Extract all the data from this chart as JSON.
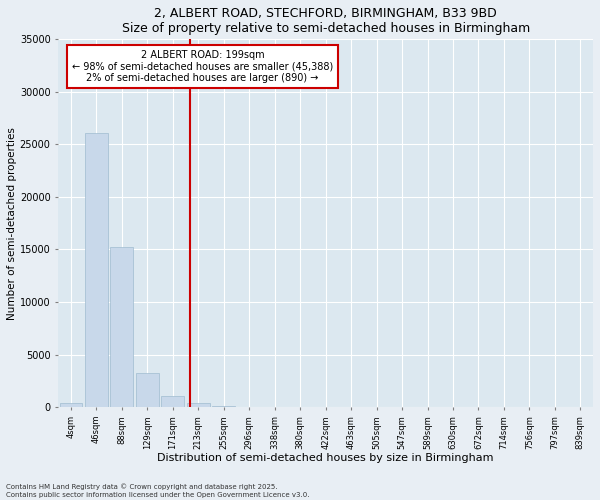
{
  "title1": "2, ALBERT ROAD, STECHFORD, BIRMINGHAM, B33 9BD",
  "title2": "Size of property relative to semi-detached houses in Birmingham",
  "xlabel": "Distribution of semi-detached houses by size in Birmingham",
  "ylabel": "Number of semi-detached properties",
  "property_label": "2 ALBERT ROAD: 199sqm",
  "annotation_line1": "← 98% of semi-detached houses are smaller (45,388)",
  "annotation_line2": "2% of semi-detached houses are larger (890) →",
  "footnote1": "Contains HM Land Registry data © Crown copyright and database right 2025.",
  "footnote2": "Contains public sector information licensed under the Open Government Licence v3.0.",
  "bin_labels": [
    "4sqm",
    "46sqm",
    "88sqm",
    "129sqm",
    "171sqm",
    "213sqm",
    "255sqm",
    "296sqm",
    "338sqm",
    "380sqm",
    "422sqm",
    "463sqm",
    "505sqm",
    "547sqm",
    "589sqm",
    "630sqm",
    "672sqm",
    "714sqm",
    "756sqm",
    "797sqm",
    "839sqm"
  ],
  "bar_values": [
    400,
    26100,
    15200,
    3300,
    1050,
    430,
    130,
    50,
    20,
    10,
    5,
    3,
    2,
    1,
    1,
    0,
    0,
    0,
    0,
    0,
    0
  ],
  "bar_color": "#c8d8ea",
  "bar_edge_color": "#a0bcd0",
  "vline_color": "#cc0000",
  "annotation_box_color": "#cc0000",
  "bg_color": "#dce8f0",
  "fig_bg_color": "#e8eef4",
  "ylim": [
    0,
    35000
  ],
  "yticks": [
    0,
    5000,
    10000,
    15000,
    20000,
    25000,
    30000,
    35000
  ]
}
